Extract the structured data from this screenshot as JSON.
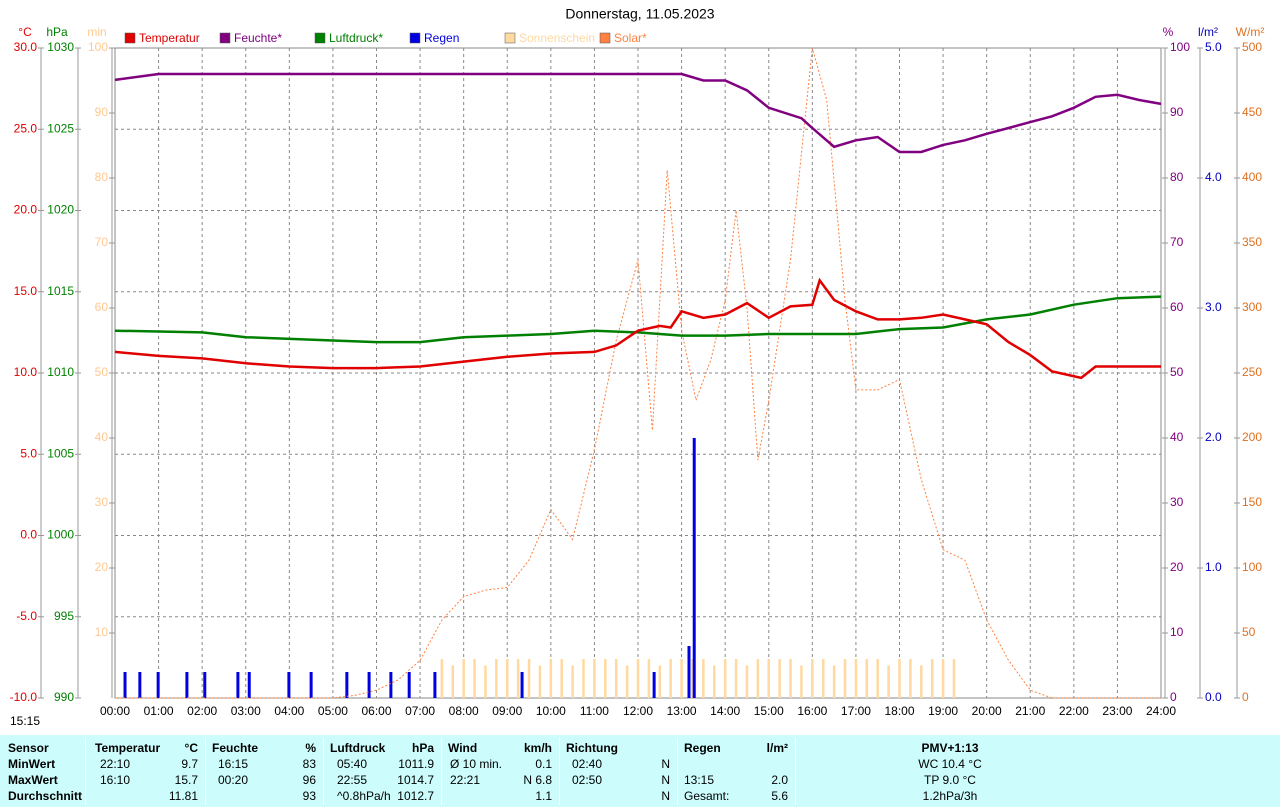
{
  "chart_data": {
    "type": "line",
    "title": "Donnerstag, 11.05.2023",
    "xlim": [
      0,
      24
    ],
    "xticks": [
      {
        "value": 0,
        "label": "00:00"
      },
      {
        "value": 1,
        "label": "01:00"
      },
      {
        "value": 2,
        "label": "02:00"
      },
      {
        "value": 3,
        "label": "03:00"
      },
      {
        "value": 4,
        "label": "04:00"
      },
      {
        "value": 5,
        "label": "05:00"
      },
      {
        "value": 6,
        "label": "06:00"
      },
      {
        "value": 7,
        "label": "07:00"
      },
      {
        "value": 8,
        "label": "08:00"
      },
      {
        "value": 9,
        "label": "09:00"
      },
      {
        "value": 10,
        "label": "10:00"
      },
      {
        "value": 11,
        "label": "11:00"
      },
      {
        "value": 12,
        "label": "12:00"
      },
      {
        "value": 13,
        "label": "13:00"
      },
      {
        "value": 14,
        "label": "14:00"
      },
      {
        "value": 15,
        "label": "15:00"
      },
      {
        "value": 16,
        "label": "16:00"
      },
      {
        "value": 17,
        "label": "17:00"
      },
      {
        "value": 18,
        "label": "18:00"
      },
      {
        "value": 19,
        "label": "19:00"
      },
      {
        "value": 20,
        "label": "20:00"
      },
      {
        "value": 21,
        "label": "21:00"
      },
      {
        "value": 22,
        "label": "22:00"
      },
      {
        "value": 23,
        "label": "23:00"
      },
      {
        "value": 24,
        "label": "24:00"
      }
    ],
    "grid": true,
    "axes": [
      {
        "unit": "°C",
        "side": "left",
        "color": "#e00000",
        "lim": [
          -10,
          30
        ],
        "ticks": [
          {
            "value": -10,
            "label": "-10.0"
          },
          {
            "value": -5,
            "label": "-5.0"
          },
          {
            "value": 0,
            "label": "0.0"
          },
          {
            "value": 5,
            "label": "5.0"
          },
          {
            "value": 10,
            "label": "10.0"
          },
          {
            "value": 15,
            "label": "15.0"
          },
          {
            "value": 20,
            "label": "20.0"
          },
          {
            "value": 25,
            "label": "25.0"
          },
          {
            "value": 30,
            "label": "30.0"
          }
        ]
      },
      {
        "unit": "hPa",
        "side": "left",
        "color": "#008000",
        "lim": [
          990,
          1030
        ],
        "ticks": [
          990,
          995,
          1000,
          1005,
          1010,
          1015,
          1020,
          1025,
          1030
        ]
      },
      {
        "unit": "min",
        "side": "left",
        "color": "#ffc890",
        "lim": [
          0,
          100
        ],
        "ticks": [
          10,
          20,
          30,
          40,
          50,
          60,
          70,
          80,
          90,
          100
        ]
      },
      {
        "unit": "%",
        "side": "right",
        "color": "#800080",
        "lim": [
          0,
          100
        ],
        "ticks": [
          0,
          10,
          20,
          30,
          40,
          50,
          60,
          70,
          80,
          90,
          100
        ]
      },
      {
        "unit": "l/m²",
        "side": "right",
        "color": "#0000c0",
        "lim": [
          0,
          5
        ],
        "ticks": [
          {
            "value": 0,
            "label": "0.0"
          },
          {
            "value": 1,
            "label": "1.0"
          },
          {
            "value": 2,
            "label": "2.0"
          },
          {
            "value": 3,
            "label": "3.0"
          },
          {
            "value": 4,
            "label": "4.0"
          },
          {
            "value": 5,
            "label": "5.0"
          }
        ]
      },
      {
        "unit": "W/m²",
        "side": "right",
        "color": "#e07020",
        "lim": [
          0,
          500
        ],
        "ticks": [
          0,
          50,
          100,
          150,
          200,
          250,
          300,
          350,
          400,
          450,
          500
        ]
      }
    ],
    "series": [
      {
        "name": "Temperatur",
        "color": "#e00000",
        "axis": 0,
        "style": "line",
        "x": [
          0,
          1,
          2,
          3,
          4,
          5,
          6,
          7,
          8,
          9,
          10,
          11,
          11.5,
          12,
          12.5,
          12.75,
          13,
          13.5,
          14,
          14.5,
          15,
          15.5,
          16,
          16.17,
          16.5,
          17,
          17.5,
          18,
          18.5,
          19,
          19.5,
          20,
          20.5,
          21,
          21.5,
          22.17,
          22.5,
          23,
          24
        ],
        "values": [
          11.3,
          11.05,
          10.9,
          10.6,
          10.4,
          10.3,
          10.3,
          10.4,
          10.7,
          11,
          11.2,
          11.3,
          11.7,
          12.6,
          12.9,
          12.8,
          13.8,
          13.4,
          13.6,
          14.3,
          13.4,
          14.1,
          14.2,
          15.7,
          14.5,
          13.8,
          13.3,
          13.3,
          13.4,
          13.6,
          13.3,
          13,
          11.9,
          11.1,
          10.1,
          9.7,
          10.4,
          10.4,
          10.4
        ]
      },
      {
        "name": "Feuchte*",
        "color": "#800080",
        "axis": 3,
        "style": "line",
        "x": [
          0,
          1,
          2,
          13,
          13.5,
          14,
          14.5,
          15,
          15.75,
          16,
          16.5,
          17,
          17.5,
          18,
          18.5,
          19,
          19.5,
          20,
          20.5,
          21,
          21.5,
          22,
          22.5,
          23,
          23.5,
          24
        ],
        "values": [
          95.1,
          96,
          96,
          96,
          95,
          95,
          93.5,
          90.8,
          89.2,
          87.7,
          84.8,
          85.8,
          86.3,
          84,
          84,
          85.1,
          85.8,
          86.8,
          87.7,
          88.6,
          89.5,
          90.8,
          92.5,
          92.8,
          92,
          91.4
        ]
      },
      {
        "name": "Luftdruck*",
        "color": "#008000",
        "axis": 1,
        "style": "line",
        "x": [
          0,
          2,
          3,
          5,
          6,
          7,
          8,
          9,
          10,
          11,
          12,
          13,
          14,
          15,
          16,
          17,
          18,
          19,
          20,
          21,
          22,
          23,
          24
        ],
        "values": [
          1012.6,
          1012.5,
          1012.2,
          1012,
          1011.9,
          1011.9,
          1012.2,
          1012.3,
          1012.4,
          1012.6,
          1012.5,
          1012.3,
          1012.3,
          1012.4,
          1012.4,
          1012.4,
          1012.7,
          1012.8,
          1013.3,
          1013.6,
          1014.2,
          1014.6,
          1014.7
        ]
      },
      {
        "name": "Regen",
        "color": "#0000e0",
        "axis": 4,
        "style": "bar",
        "x": [
          0.23,
          0.57,
          0.99,
          1.65,
          2.06,
          2.82,
          3.08,
          3.99,
          4.5,
          5.32,
          5.83,
          6.33,
          6.75,
          7.34,
          9.34,
          12.37,
          13.17,
          13.29
        ],
        "values": [
          0.2,
          0.2,
          0.2,
          0.2,
          0.2,
          0.2,
          0.2,
          0.2,
          0.2,
          0.2,
          0.2,
          0.2,
          0.2,
          0.2,
          0.2,
          0.2,
          0.4,
          2
        ]
      },
      {
        "name": "Sonnenschein",
        "color": "#ffd9a0",
        "axis": 2,
        "style": "bar",
        "x": [
          7.5,
          7.75,
          8,
          8.25,
          8.5,
          8.75,
          9,
          9.25,
          9.5,
          9.75,
          10,
          10.25,
          10.5,
          10.75,
          11,
          11.25,
          11.5,
          11.75,
          12,
          12.25,
          12.5,
          12.75,
          13,
          13.25,
          13.5,
          13.75,
          14,
          14.25,
          14.5,
          14.75,
          15,
          15.25,
          15.5,
          15.75,
          16,
          16.25,
          16.5,
          16.75,
          17,
          17.25,
          17.5,
          17.75,
          18,
          18.25,
          18.5,
          18.75,
          19,
          19.25
        ],
        "values": [
          6,
          5,
          6,
          6,
          5,
          6,
          6,
          6,
          6,
          5,
          6,
          6,
          5,
          6,
          6,
          6,
          6,
          5,
          6,
          6,
          5,
          6,
          6,
          6,
          6,
          5,
          6,
          6,
          5,
          6,
          6,
          6,
          6,
          5,
          6,
          6,
          5,
          6,
          6,
          6,
          6,
          5,
          6,
          6,
          5,
          6,
          6,
          6
        ]
      },
      {
        "name": "Solar*",
        "color": "#ff8040",
        "axis": 5,
        "style": "dashed",
        "x": [
          0,
          5,
          5.5,
          6,
          6.5,
          7,
          7.5,
          8,
          8.5,
          9,
          9.5,
          10,
          10.5,
          11,
          11.5,
          12,
          12.33,
          12.67,
          13,
          13.33,
          13.67,
          14,
          14.25,
          14.5,
          14.75,
          15,
          15.5,
          16,
          16.33,
          16.75,
          17,
          17.5,
          18,
          18.5,
          19,
          19.5,
          20,
          20.5,
          21,
          21.5,
          24
        ],
        "values": [
          0,
          0,
          2,
          6,
          14,
          29,
          60,
          78,
          83,
          85,
          106,
          145,
          122,
          191,
          275,
          337,
          206,
          406,
          283,
          229,
          260,
          306,
          375,
          300,
          183,
          229,
          337,
          500,
          460,
          306,
          237,
          237,
          245,
          168,
          114,
          106,
          60,
          29,
          6,
          0,
          0
        ]
      }
    ]
  },
  "footer_time": "15:15",
  "table": {
    "header": {
      "label": "Sensor",
      "t_name": "Temperatur",
      "t_unit": "°C",
      "h_name": "Feuchte",
      "h_unit": "%",
      "p_name": "Luftdruck",
      "p_unit": "hPa",
      "w_name": "Wind",
      "w_unit": "km/h",
      "d_name": "Richtung",
      "r_name": "Regen",
      "r_unit": "l/m²",
      "pmv": "PMV+1:13"
    },
    "rows": [
      {
        "label": "MinWert",
        "t_time": "22:10",
        "t": "9.7",
        "h_time": "16:15",
        "h": "83",
        "p_time": "05:40",
        "p": "1011.9",
        "w_time": "Ø 10 min.",
        "w": "0.1",
        "d_time": "02:40",
        "d": "N",
        "pmv": "WC 10.4 °C"
      },
      {
        "label": "MaxWert",
        "t_time": "16:10",
        "t": "15.7",
        "h_time": "00:20",
        "h": "96",
        "p_time": "22:55",
        "p": "1014.7",
        "w_time": "22:21",
        "w": "N 6.8",
        "d_time": "02:50",
        "d": "N",
        "r_time": "13:15",
        "r": "2.0",
        "pmv": "TP 9.0 °C"
      },
      {
        "label": "Durchschnitt",
        "t": "11.81",
        "h": "93",
        "p_time": "^0.8hPa/h",
        "p": "1012.7",
        "w": "1.1",
        "d": "N",
        "r_time": "Gesamt:",
        "r": "5.6",
        "pmv": "1.2hPa/3h"
      }
    ]
  }
}
